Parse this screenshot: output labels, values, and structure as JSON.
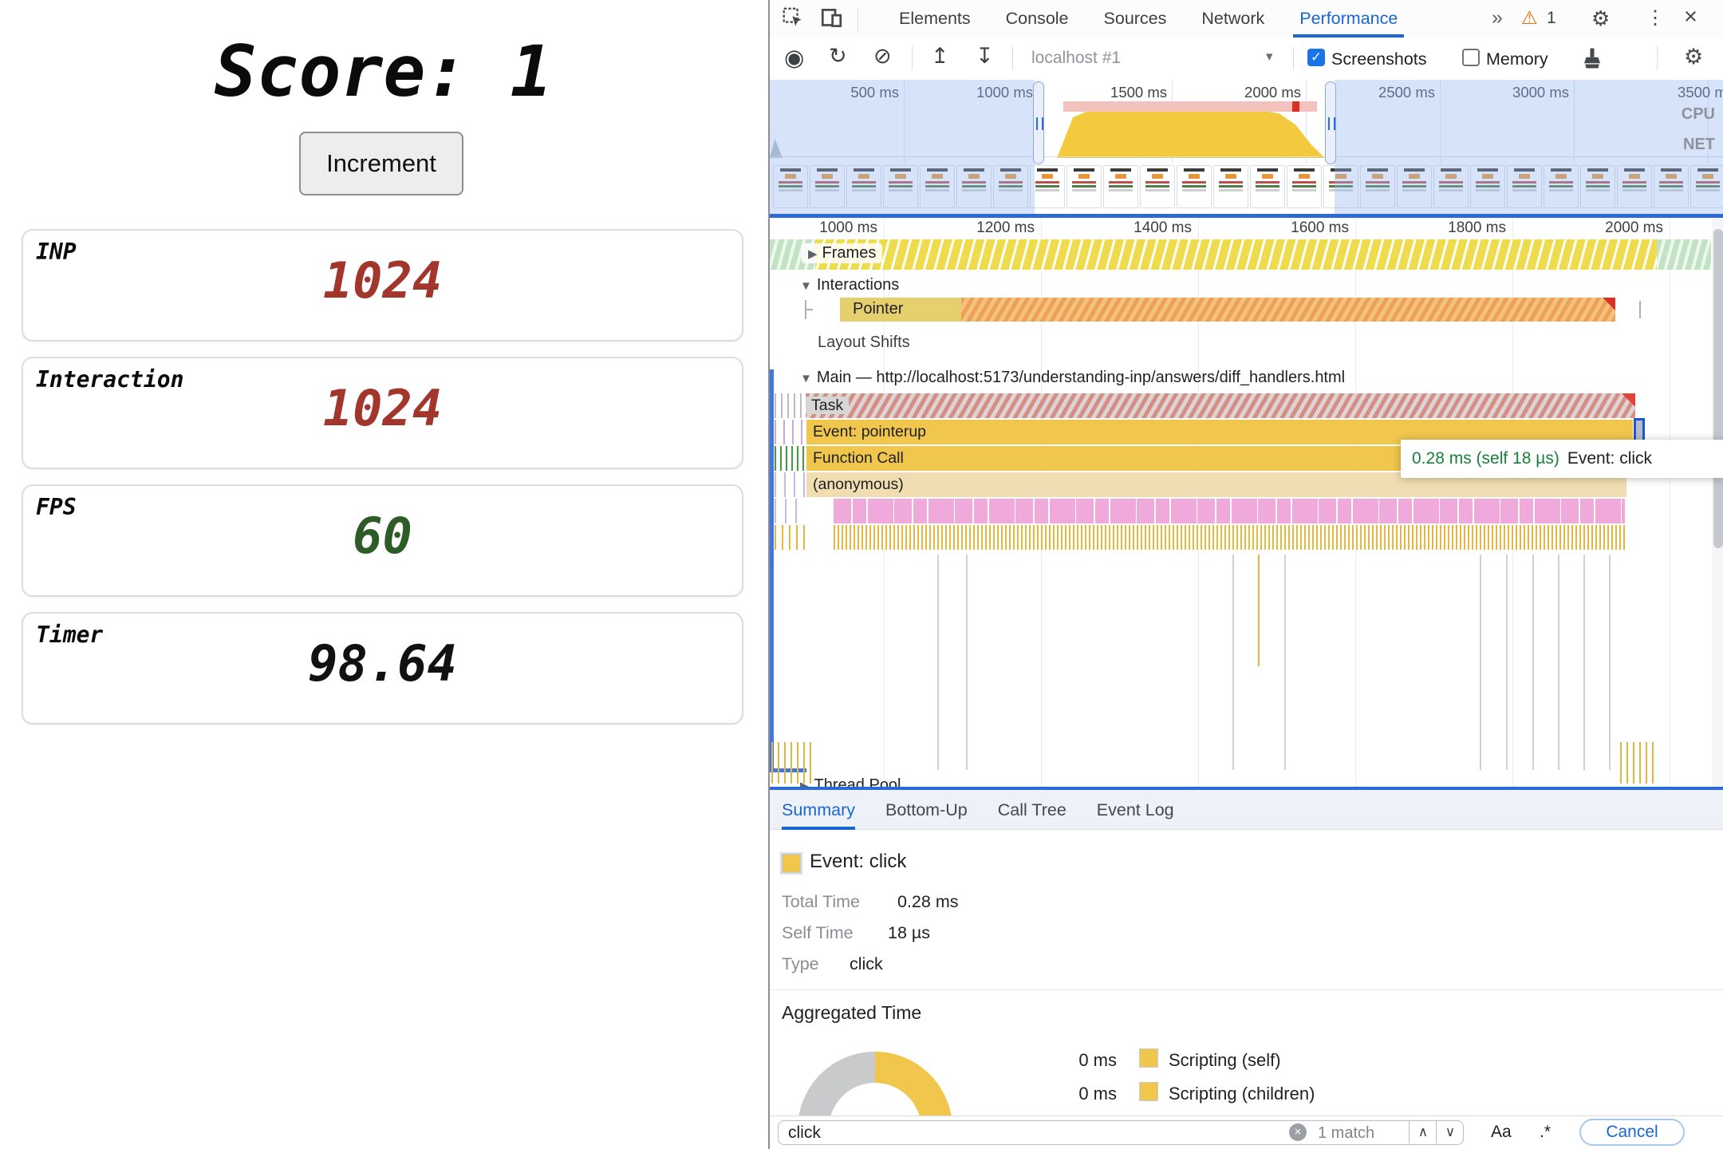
{
  "app": {
    "score_title": "Score: 1",
    "increment_button": "Increment",
    "cards": [
      {
        "label": "INP",
        "value": "1024",
        "color": "#a2352c"
      },
      {
        "label": "Interaction",
        "value": "1024",
        "color": "#a2352c"
      },
      {
        "label": "FPS",
        "value": "60",
        "color": "#2d5c28"
      },
      {
        "label": "Timer",
        "value": "98.64",
        "color": "#111111"
      }
    ]
  },
  "devtools": {
    "tabs": {
      "items": [
        "Elements",
        "Console",
        "Sources",
        "Network",
        "Performance"
      ],
      "active": "Performance",
      "more_icon": "»",
      "warning_icon": "⚠",
      "warning_count": "1",
      "gear_icon": "⚙",
      "kebab_icon": "⋮",
      "close_icon": "×"
    },
    "toolbar": {
      "record_icon": "◉",
      "reload_icon": "↻",
      "clear_icon": "⊘",
      "upload_icon": "↥",
      "download_icon": "↧",
      "target": "localhost #1",
      "dropdown_icon": "▾",
      "screenshots_label": "Screenshots",
      "screenshots_checked": "✓",
      "memory_label": "Memory",
      "gear_icon": "⚙"
    },
    "overview": {
      "ticks": [
        "500 ms",
        "1000 ms",
        "1500 ms",
        "2000 ms",
        "2500 ms",
        "3000 ms",
        "3500 ms"
      ],
      "cpu": "CPU",
      "net": "NET"
    },
    "timeline": {
      "ticks": [
        "1000 ms",
        "1200 ms",
        "1400 ms",
        "1600 ms",
        "1800 ms",
        "2000 ms"
      ]
    },
    "tracks": {
      "frames": "Frames",
      "interactions": "Interactions",
      "pointer": "Pointer",
      "layout_shifts": "Layout Shifts",
      "main": "Main — http://localhost:5173/understanding-inp/answers/diff_handlers.html",
      "thread_pool": "Thread Pool",
      "collapsed_icon": "▶",
      "expanded_icon": "▼"
    },
    "flame": {
      "task": "Task",
      "event_pointerup": "Event: pointerup",
      "function_call": "Function Call",
      "anonymous": "(anonymous)"
    },
    "tooltip": {
      "time": "0.28 ms (self 18 µs)",
      "label": "Event: click"
    },
    "bottom_tabs": {
      "items": [
        "Summary",
        "Bottom-Up",
        "Call Tree",
        "Event Log"
      ],
      "active": "Summary"
    },
    "summary": {
      "title": "Event: click",
      "swatch_color": "#f0c64d",
      "rows": [
        {
          "label": "Total Time",
          "value": "0.28 ms"
        },
        {
          "label": "Self Time",
          "value": "18 µs"
        },
        {
          "label": "Type",
          "value": "click"
        }
      ],
      "aggregated_title": "Aggregated Time",
      "donut": {
        "yellow": "#f0c64d",
        "grey": "#c9cacb"
      },
      "legend": [
        {
          "value": "0 ms",
          "label": "Scripting (self)"
        },
        {
          "value": "0 ms",
          "label": "Scripting (children)"
        }
      ]
    },
    "search": {
      "value": "click",
      "clear_icon": "×",
      "matches": "1 match",
      "up_icon": "∧",
      "down_icon": "∨",
      "case_sensitive": "Aa",
      "regex": ".*",
      "cancel": "Cancel"
    }
  }
}
